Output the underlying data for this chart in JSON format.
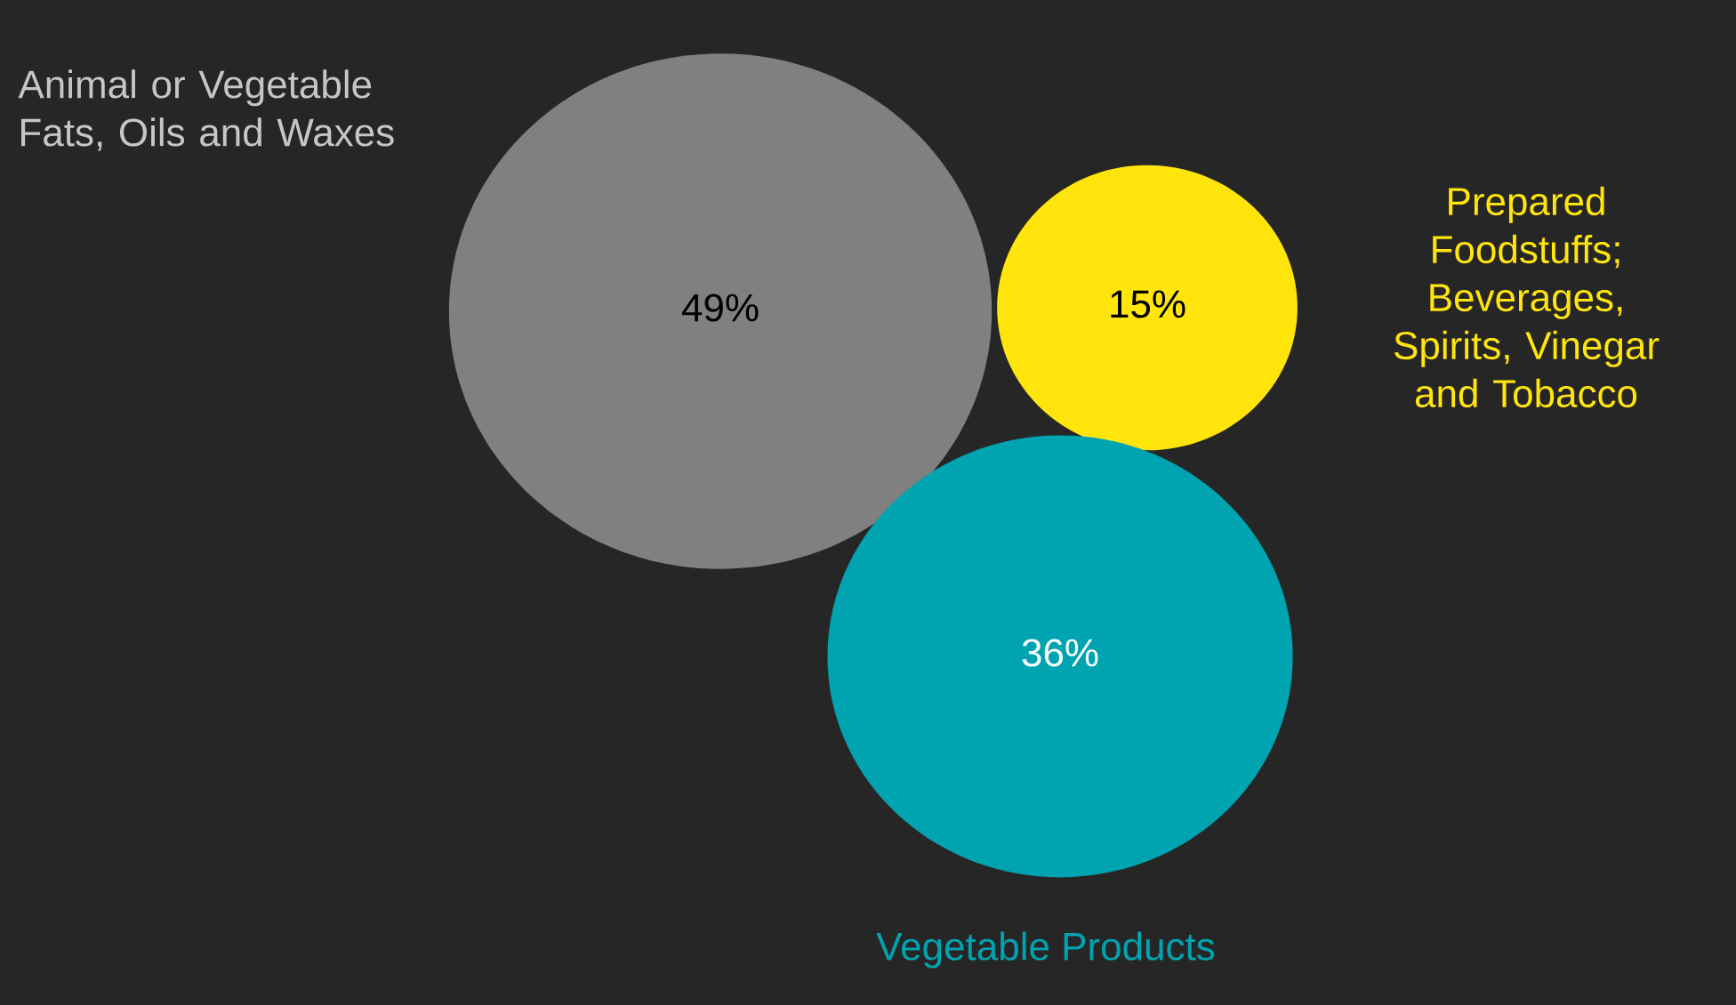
{
  "chart_data": {
    "type": "other",
    "categories": [
      "Animal or Vegetable Fats, Oils and Waxes",
      "Prepared Foodstuffs; Beverages, Spirits, Vinegar and Tobacco",
      "Vegetable Products"
    ],
    "values": [
      49,
      15,
      36
    ],
    "value_labels": [
      "49%",
      "15%",
      "36%"
    ],
    "colors": [
      "#808080",
      "#ffe50c",
      "#00a4b0"
    ]
  }
}
